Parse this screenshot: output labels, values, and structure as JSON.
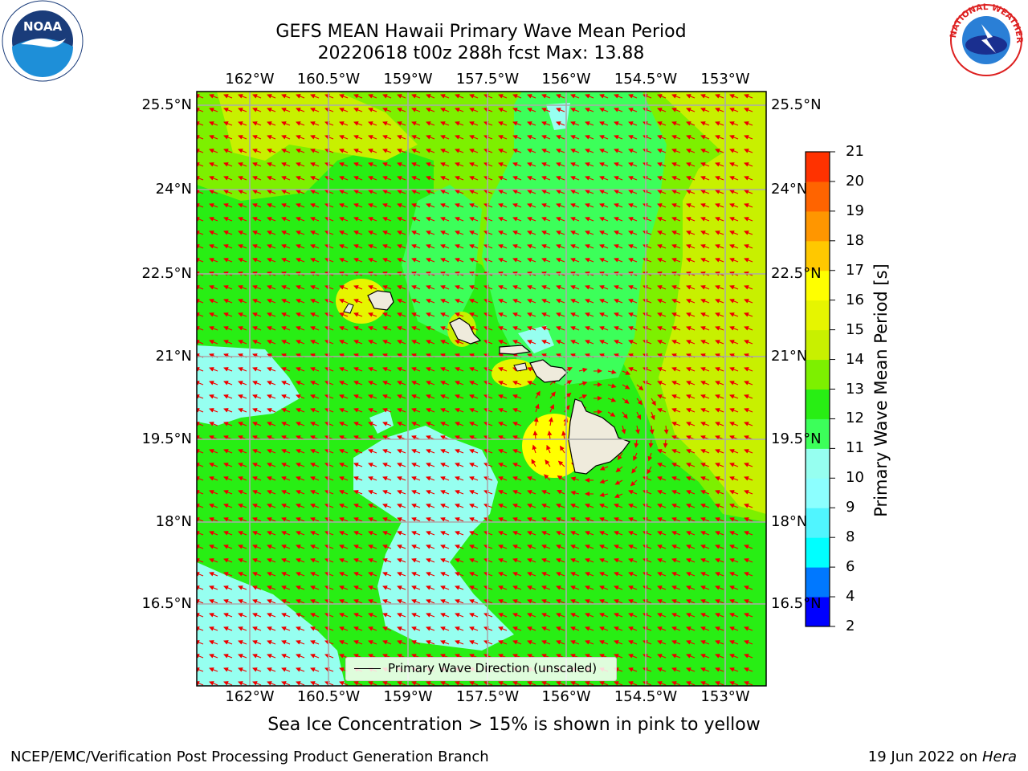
{
  "title": {
    "line1": "GEFS MEAN Hawaii Primary Wave Mean Period",
    "line2": "20220618 t00z 288h fcst   Max: 13.88"
  },
  "map": {
    "lon_ticks": [
      "162°W",
      "160.5°W",
      "159°W",
      "157.5°W",
      "156°W",
      "154.5°W",
      "153°W"
    ],
    "lat_ticks": [
      "25.5°N",
      "24°N",
      "22.5°N",
      "21°N",
      "19.5°N",
      "18°N",
      "16.5°N"
    ],
    "lon_range": [
      -163,
      -152.6
    ],
    "lat_range": [
      15.0,
      25.8
    ],
    "field_colors": {
      "period_9_10": "#96fff0",
      "period_10_11": "#3cff5a",
      "period_11_12": "#28ee14",
      "period_12_13": "#7df000",
      "period_13_14": "#c8f000",
      "period_14_15": "#e6f500",
      "land": "#efebdc",
      "arrow": "#ee0000"
    },
    "legend_label": "Primary Wave Direction (unscaled)"
  },
  "colorbar": {
    "title": "Primary Wave Mean Period [s]",
    "levels": [
      2,
      4,
      6,
      8,
      9,
      10,
      11,
      12,
      13,
      14,
      15,
      16,
      17,
      18,
      19,
      20,
      21
    ],
    "colors": [
      "#0000ff",
      "#0078ff",
      "#00ffff",
      "#50f5ff",
      "#8cffff",
      "#96fff0",
      "#3cff5a",
      "#28ee14",
      "#7df000",
      "#c8f000",
      "#e6f500",
      "#ffff00",
      "#ffc800",
      "#ff9600",
      "#ff6400",
      "#ff3200",
      "#ff0000"
    ]
  },
  "note": "Sea Ice Concentration > 15% is shown in pink to yellow",
  "footer": {
    "left": "NCEP/EMC/Verification Post Processing Product Generation Branch",
    "right_prefix": "19 Jun 2022 on ",
    "right_host": "Hera"
  },
  "logos": {
    "noaa_text": "NOAA",
    "nws_text": "NATIONAL WEATHER SERVICE"
  }
}
